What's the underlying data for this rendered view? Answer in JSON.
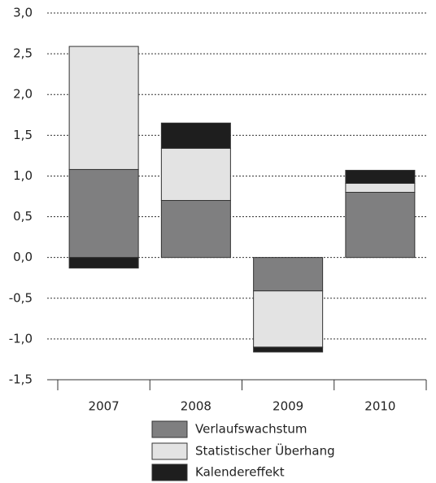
{
  "chart_data": {
    "type": "stacked-bar",
    "categories": [
      "2007",
      "2008",
      "2009",
      "2010"
    ],
    "series": [
      {
        "name": "Verlaufswachstum",
        "color": "#7f7f80",
        "values": [
          1.08,
          0.7,
          -0.41,
          0.8
        ]
      },
      {
        "name": "Statistischer Überhang",
        "color": "#e3e3e3",
        "values": [
          1.51,
          0.64,
          -0.69,
          0.11
        ]
      },
      {
        "name": "Kalendereffekt",
        "color": "#1e1e1e",
        "values": [
          -0.13,
          0.31,
          -0.06,
          0.16
        ]
      }
    ],
    "ylim": [
      -1.5,
      3.0
    ],
    "yticks": [
      {
        "value": 3.0,
        "label": "3,0"
      },
      {
        "value": 2.5,
        "label": "2,5"
      },
      {
        "value": 2.0,
        "label": "2,0"
      },
      {
        "value": 1.5,
        "label": "1,5"
      },
      {
        "value": 1.0,
        "label": "1,0"
      },
      {
        "value": 0.5,
        "label": "0,5"
      },
      {
        "value": 0.0,
        "label": "0,0"
      },
      {
        "value": -0.5,
        "label": "-0,5"
      },
      {
        "value": -1.0,
        "label": "-1,0"
      },
      {
        "value": -1.5,
        "label": "-1,5"
      }
    ],
    "grid": true,
    "legend": "bottom"
  }
}
